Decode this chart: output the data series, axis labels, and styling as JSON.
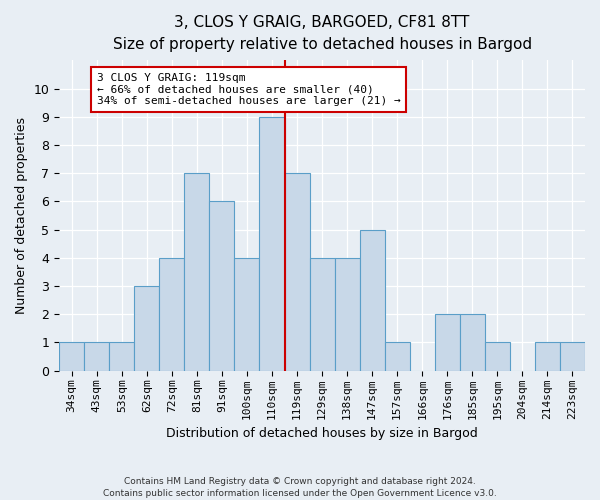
{
  "title": "3, CLOS Y GRAIG, BARGOED, CF81 8TT",
  "subtitle": "Size of property relative to detached houses in Bargod",
  "xlabel": "Distribution of detached houses by size in Bargod",
  "ylabel": "Number of detached properties",
  "categories": [
    "34sqm",
    "43sqm",
    "53sqm",
    "62sqm",
    "72sqm",
    "81sqm",
    "91sqm",
    "100sqm",
    "110sqm",
    "119sqm",
    "129sqm",
    "138sqm",
    "147sqm",
    "157sqm",
    "166sqm",
    "176sqm",
    "185sqm",
    "195sqm",
    "204sqm",
    "214sqm",
    "223sqm"
  ],
  "values": [
    1,
    1,
    1,
    3,
    4,
    7,
    6,
    4,
    9,
    7,
    4,
    4,
    5,
    1,
    0,
    2,
    2,
    1,
    0,
    1,
    1
  ],
  "bar_color": "#c8d8e8",
  "bar_edge_color": "#5a9ec8",
  "vline_x": 8.5,
  "annotation_text": "3 CLOS Y GRAIG: 119sqm\n← 66% of detached houses are smaller (40)\n34% of semi-detached houses are larger (21) →",
  "annotation_box_color": "#ffffff",
  "annotation_box_edge_color": "#cc0000",
  "vline_color": "#cc0000",
  "ylim": [
    0,
    11
  ],
  "yticks": [
    0,
    1,
    2,
    3,
    4,
    5,
    6,
    7,
    8,
    9,
    10,
    11
  ],
  "footer": "Contains HM Land Registry data © Crown copyright and database right 2024.\nContains public sector information licensed under the Open Government Licence v3.0.",
  "background_color": "#e8eef4",
  "grid_color": "#ffffff",
  "title_fontsize": 11,
  "subtitle_fontsize": 10,
  "tick_fontsize": 8,
  "ylabel_fontsize": 9,
  "xlabel_fontsize": 9,
  "annotation_fontsize": 8,
  "footer_fontsize": 6.5
}
